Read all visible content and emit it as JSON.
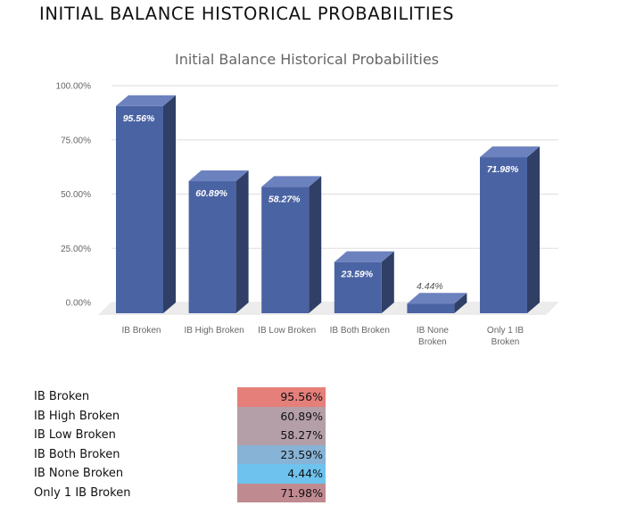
{
  "page": {
    "title": "INITIAL BALANCE HISTORICAL PROBABILITIES"
  },
  "chart_data": {
    "type": "bar",
    "title": "Initial Balance Historical Probabilities",
    "xlabel": "",
    "ylabel": "",
    "ylim": [
      0,
      100
    ],
    "yticks": [
      "0.00%",
      "25.00%",
      "50.00%",
      "75.00%",
      "100.00%"
    ],
    "categories": [
      "IB Broken",
      "IB High Broken",
      "IB Low Broken",
      "IB Both Broken",
      "IB None Broken",
      "Only 1 IB Broken"
    ],
    "category_lines": [
      [
        "IB Broken"
      ],
      [
        "IB High Broken"
      ],
      [
        "IB Low Broken"
      ],
      [
        "IB Both Broken"
      ],
      [
        "IB None",
        "Broken"
      ],
      [
        "Only 1 IB",
        "Broken"
      ]
    ],
    "values": [
      95.56,
      60.89,
      58.27,
      23.59,
      4.44,
      71.98
    ],
    "data_labels": [
      "95.56%",
      "60.89%",
      "58.27%",
      "23.59%",
      "4.44%",
      "71.98%"
    ],
    "colors": {
      "bar_front": "#4a63a3",
      "bar_side": "#2f3f66",
      "bar_top": "#6c82bf",
      "grid": "#dddddd",
      "floor": "#ececec"
    },
    "grid": true,
    "legend": "none"
  },
  "table": {
    "rows": [
      {
        "label": "IB Broken",
        "value": "95.56%",
        "color": "#e57f7a"
      },
      {
        "label": "IB High Broken",
        "value": "60.89%",
        "color": "#b49ea8"
      },
      {
        "label": "IB Low Broken",
        "value": "58.27%",
        "color": "#b49ea8"
      },
      {
        "label": "IB Both Broken",
        "value": "23.59%",
        "color": "#87b3d6"
      },
      {
        "label": "IB None Broken",
        "value": "4.44%",
        "color": "#6ec3ee"
      },
      {
        "label": "Only 1 IB Broken",
        "value": "71.98%",
        "color": "#c08a91"
      }
    ]
  }
}
